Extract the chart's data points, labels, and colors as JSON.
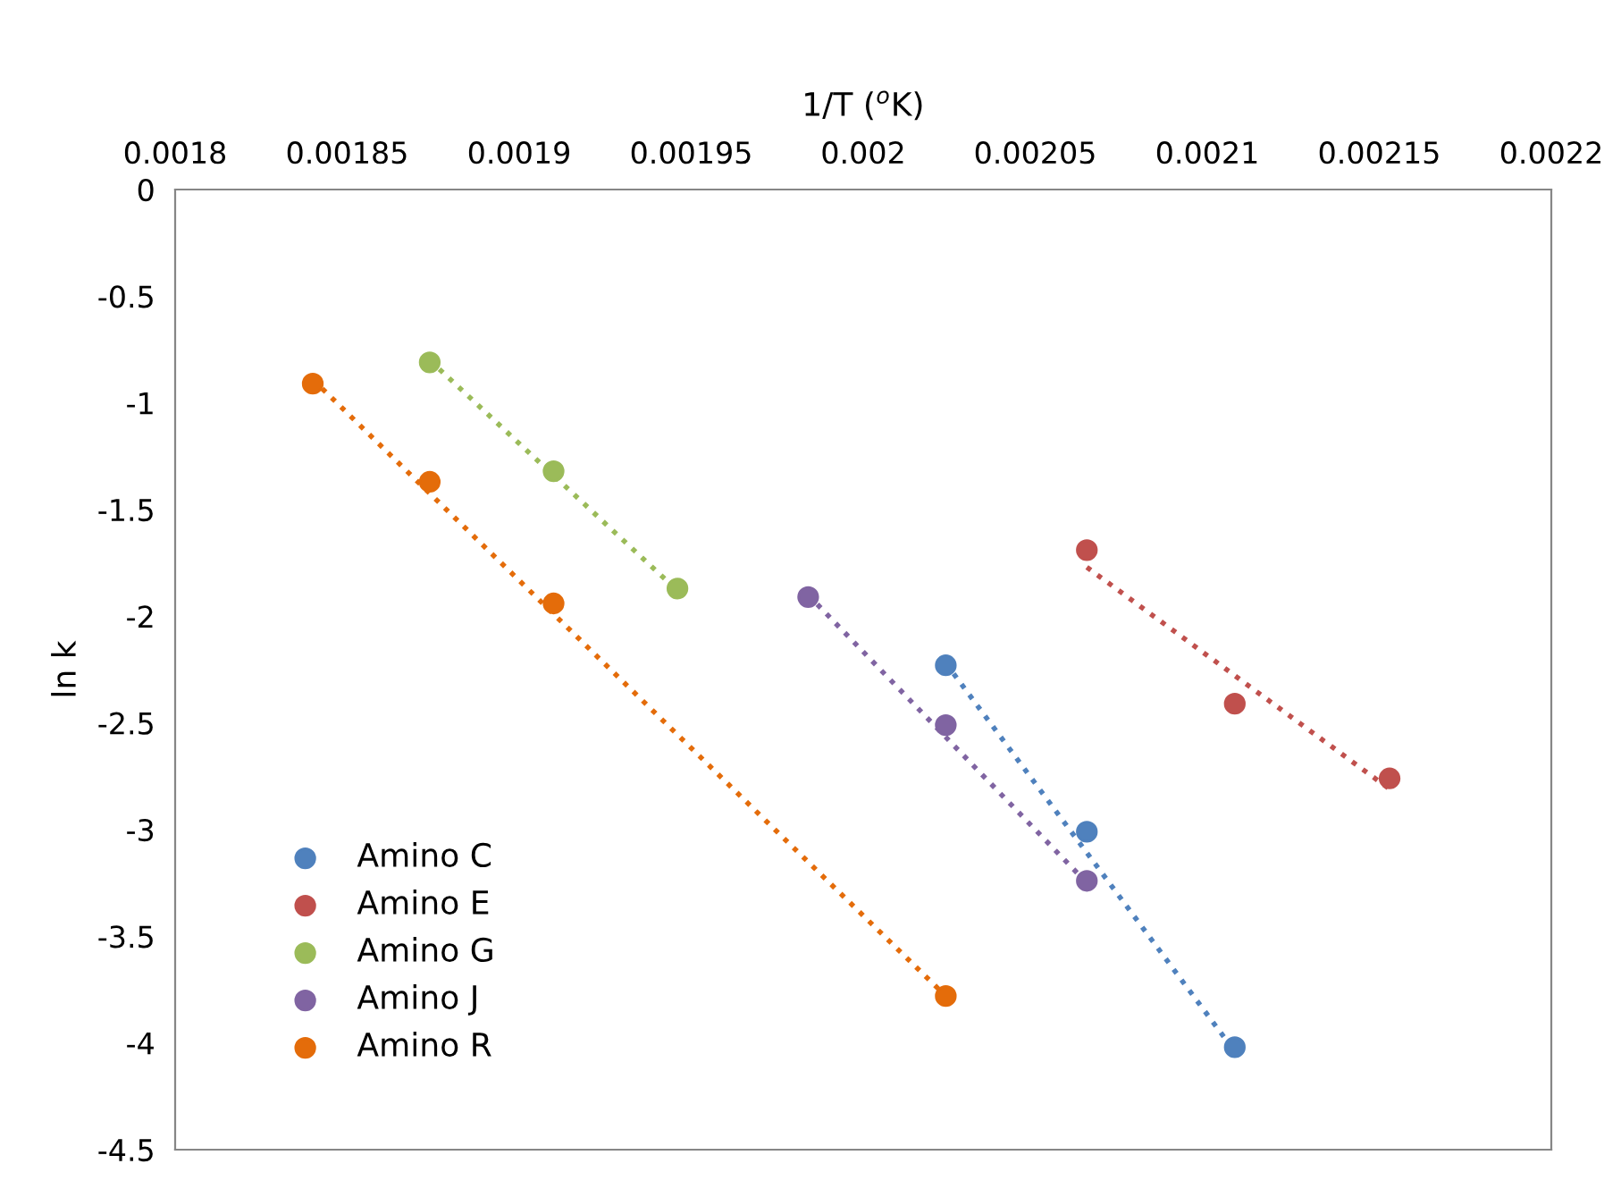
{
  "chart_data": {
    "type": "scatter",
    "xlabel": "1/T ($^{o}$K)",
    "ylabel": "ln k",
    "xlim": [
      0.0018,
      0.0022
    ],
    "xticks": [
      0.0018,
      0.00185,
      0.0019,
      0.00195,
      0.002,
      0.00205,
      0.0021,
      0.00215,
      0.0022
    ],
    "ylim": [
      -4.5,
      0
    ],
    "yticks": [
      0,
      -0.5,
      -1,
      -1.5,
      -2,
      -2.5,
      -3,
      -3.5,
      -4,
      -4.5
    ],
    "grid": false,
    "legend": "bottom left",
    "marker": "circle",
    "series": [
      {
        "name": "Amino C",
        "color": "#4f81bd",
        "x": [
          0.002024,
          0.002065,
          0.002108
        ],
        "values": [
          -2.23,
          -3.01,
          -4.02
        ]
      },
      {
        "name": "Amino E",
        "color": "#c0504d",
        "x": [
          0.002065,
          0.002108,
          0.002153
        ],
        "values": [
          -1.69,
          -2.41,
          -2.76
        ]
      },
      {
        "name": "Amino G",
        "color": "#9bbb59",
        "x": [
          0.001874,
          0.00191,
          0.001946
        ],
        "values": [
          -0.81,
          -1.32,
          -1.87
        ]
      },
      {
        "name": "Amino J",
        "color": "#8064a2",
        "x": [
          0.001984,
          0.002024,
          0.002065
        ],
        "values": [
          -1.91,
          -2.51,
          -3.24
        ]
      },
      {
        "name": "Amino R",
        "color": "#e46c0a",
        "x": [
          0.00184,
          0.001874,
          0.00191,
          0.002024
        ],
        "values": [
          -0.91,
          -1.37,
          -1.94,
          -3.78
        ]
      },
      {
        "type": "line",
        "color": "#4f81bd",
        "line_style": "dotted",
        "marker": "none",
        "x": [
          0.002024,
          0.002108
        ],
        "values": [
          -2.22,
          -4.04
        ]
      },
      {
        "type": "line",
        "color": "#c0504d",
        "line_style": "dotted",
        "marker": "none",
        "x": [
          0.002065,
          0.002153
        ],
        "values": [
          -1.77,
          -2.81
        ]
      },
      {
        "type": "line",
        "color": "#9bbb59",
        "line_style": "dotted",
        "marker": "none",
        "x": [
          0.001874,
          0.001946
        ],
        "values": [
          -0.8,
          -1.88
        ]
      },
      {
        "type": "line",
        "color": "#8064a2",
        "line_style": "dotted",
        "marker": "none",
        "x": [
          0.001984,
          0.002065
        ],
        "values": [
          -1.9,
          -3.25
        ]
      },
      {
        "type": "line",
        "color": "#e46c0a",
        "line_style": "dotted",
        "marker": "none",
        "x": [
          0.00184,
          0.002024
        ],
        "values": [
          -0.89,
          -3.78
        ]
      }
    ]
  }
}
